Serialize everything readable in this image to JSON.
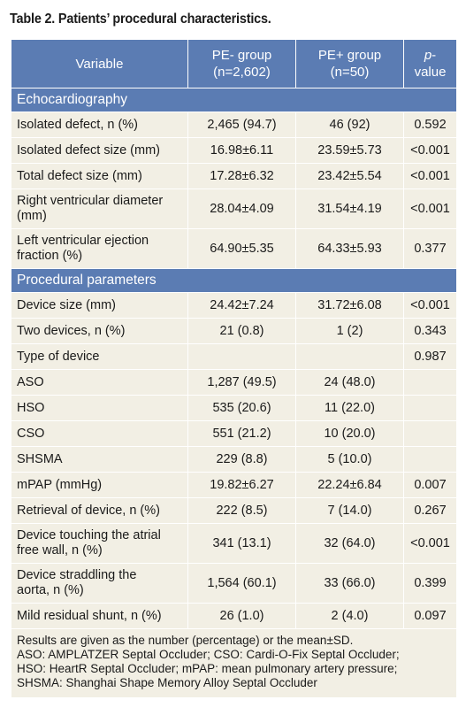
{
  "caption": "Table 2. Patients’ procedural characteristics.",
  "header": {
    "variable": "Variable",
    "pe_neg_line1": "PE- group",
    "pe_neg_line2": "(n=2,602)",
    "pe_pos_line1": "PE+ group",
    "pe_pos_line2": "(n=50)",
    "pvalue_p": "p",
    "pvalue_rest": "-value"
  },
  "sections": [
    {
      "title": "Echocardiography",
      "rows": [
        {
          "label": "Isolated defect, n (%)",
          "pe_neg": "2,465 (94.7)",
          "pe_pos": "46 (92)",
          "p": "0.592"
        },
        {
          "label": "Isolated defect size (mm)",
          "pe_neg": "16.98±6.11",
          "pe_pos": "23.59±5.73",
          "p": "<0.001"
        },
        {
          "label": "Total defect size (mm)",
          "pe_neg": "17.28±6.32",
          "pe_pos": "23.42±5.54",
          "p": "<0.001"
        },
        {
          "label_line1": "Right ventricular diameter",
          "label_line2": "(mm)",
          "pe_neg": "28.04±4.09",
          "pe_pos": "31.54±4.19",
          "p": "<0.001"
        },
        {
          "label_line1": "Left ventricular ejection",
          "label_line2": "fraction (%)",
          "pe_neg": "64.90±5.35",
          "pe_pos": "64.33±5.93",
          "p": "0.377"
        }
      ]
    },
    {
      "title": "Procedural parameters",
      "rows": [
        {
          "label": "Device size (mm)",
          "pe_neg": "24.42±7.24",
          "pe_pos": "31.72±6.08",
          "p": "<0.001"
        },
        {
          "label": "Two devices, n (%)",
          "pe_neg": "21 (0.8)",
          "pe_pos": "1 (2)",
          "p": "0.343"
        },
        {
          "label": "Type of device",
          "pe_neg": "",
          "pe_pos": "",
          "p": "0.987"
        },
        {
          "label": "ASO",
          "pe_neg": "1,287 (49.5)",
          "pe_pos": "24 (48.0)",
          "p": ""
        },
        {
          "label": "HSO",
          "pe_neg": "535 (20.6)",
          "pe_pos": "11 (22.0)",
          "p": ""
        },
        {
          "label": "CSO",
          "pe_neg": "551 (21.2)",
          "pe_pos": "10 (20.0)",
          "p": ""
        },
        {
          "label": "SHSMA",
          "pe_neg": "229 (8.8)",
          "pe_pos": "5 (10.0)",
          "p": ""
        },
        {
          "label": "mPAP (mmHg)",
          "pe_neg": "19.82±6.27",
          "pe_pos": "22.24±6.84",
          "p": "0.007"
        },
        {
          "label": "Retrieval of device, n (%)",
          "pe_neg": "222 (8.5)",
          "pe_pos": "7 (14.0)",
          "p": "0.267"
        },
        {
          "label_line1": "Device touching the atrial",
          "label_line2": "free wall, n (%)",
          "pe_neg": "341 (13.1)",
          "pe_pos": "32 (64.0)",
          "p": "<0.001"
        },
        {
          "label_line1": "Device straddling the",
          "label_line2": "aorta, n (%)",
          "pe_neg": "1,564 (60.1)",
          "pe_pos": "33 (66.0)",
          "p": "0.399"
        },
        {
          "label": "Mild residual shunt, n (%)",
          "pe_neg": "26 (1.0)",
          "pe_pos": "2 (4.0)",
          "p": "0.097"
        }
      ]
    }
  ],
  "footnote": [
    "Results are given as the number (percentage) or the mean±SD.",
    "ASO: AMPLATZER Septal Occluder; CSO: Cardi-O-Fix Septal Occluder;",
    "HSO: HeartR Septal Occluder; mPAP: mean pulmonary artery pressure;",
    "SHSMA: Shanghai Shape Memory Alloy Septal Occluder"
  ],
  "colors": {
    "header_bg": "#5b7cb3",
    "row_bg": "#f2efe4",
    "header_text": "#ffffff"
  }
}
